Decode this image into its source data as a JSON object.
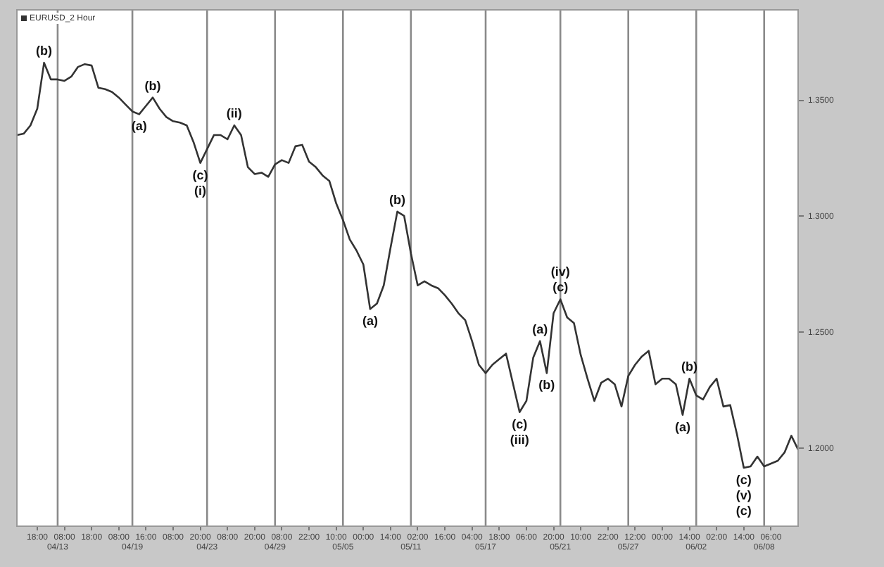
{
  "chart_data": {
    "type": "line",
    "legend": "top left",
    "marker": "none",
    "line_style": "solid",
    "grid": false,
    "categories": [
      null,
      null,
      null,
      "18:00",
      null,
      null,
      "04/13",
      "08:00",
      null,
      null,
      null,
      "18:00",
      null,
      null,
      null,
      "08:00",
      null,
      "04/19",
      null,
      "16:00",
      null,
      null,
      null,
      "08:00",
      null,
      null,
      null,
      "20:00",
      "04/23",
      null,
      null,
      "08:00",
      null,
      null,
      null,
      "20:00",
      null,
      null,
      "04/29",
      "08:00",
      null,
      null,
      null,
      "22:00",
      null,
      null,
      null,
      "10:00",
      "05/05",
      null,
      null,
      "00:00",
      null,
      null,
      null,
      "14:00",
      null,
      null,
      "05/11",
      "02:00",
      null,
      null,
      null,
      "16:00",
      null,
      null,
      null,
      "04:00",
      null,
      "05/17",
      null,
      "18:00",
      null,
      null,
      null,
      "06:00",
      null,
      null,
      null,
      "20:00",
      "05/21",
      null,
      null,
      "10:00",
      null,
      null,
      null,
      "22:00",
      null,
      null,
      "05/27",
      "12:00",
      null,
      null,
      null,
      "00:00",
      null,
      null,
      null,
      "14:00",
      "06/02",
      null,
      null,
      "02:00",
      null,
      null,
      null,
      "14:00",
      null,
      null,
      "06/08",
      "06:00",
      null,
      null,
      null,
      null
    ],
    "series": [
      {
        "name": "EURUSD_2 Hour",
        "color": "#333333",
        "values": [
          1.335,
          1.3356,
          1.3392,
          1.3464,
          1.3662,
          1.359,
          1.359,
          1.3584,
          1.3602,
          1.3644,
          1.3656,
          1.365,
          1.3554,
          1.3548,
          1.3536,
          1.3512,
          1.3482,
          1.3452,
          1.344,
          1.3476,
          1.3512,
          1.3464,
          1.3428,
          1.341,
          1.3404,
          1.3392,
          1.332,
          1.323,
          1.329,
          1.335,
          1.335,
          1.3332,
          1.3392,
          1.335,
          1.3212,
          1.3182,
          1.3188,
          1.317,
          1.3224,
          1.3242,
          1.323,
          1.3302,
          1.3308,
          1.3236,
          1.3212,
          1.3176,
          1.3152,
          1.3056,
          1.2984,
          1.29,
          1.2852,
          1.2792,
          1.26,
          1.2624,
          1.2702,
          1.2864,
          1.302,
          1.3002,
          1.284,
          1.2702,
          1.272,
          1.2702,
          1.269,
          1.266,
          1.2624,
          1.2582,
          1.2552,
          1.2462,
          1.236,
          1.2324,
          1.236,
          1.2384,
          1.2408,
          1.2282,
          1.2156,
          1.2204,
          1.239,
          1.2462,
          1.2324,
          1.2582,
          1.2642,
          1.2564,
          1.254,
          1.2402,
          1.23,
          1.2204,
          1.2282,
          1.23,
          1.2276,
          1.218,
          1.2312,
          1.236,
          1.2396,
          1.242,
          1.2276,
          1.23,
          1.23,
          1.2276,
          1.2144,
          1.23,
          1.2228,
          1.221,
          1.2264,
          1.23,
          1.218,
          1.2186,
          1.206,
          1.1916,
          1.1922,
          1.1964,
          1.1922,
          1.1934,
          1.1946,
          1.1982,
          1.2054,
          1.1994
        ],
        "value_labels": [
          null,
          null,
          null,
          null,
          "(b)",
          null,
          null,
          null,
          null,
          null,
          null,
          null,
          null,
          null,
          null,
          null,
          null,
          null,
          "(a)",
          null,
          "(b)",
          null,
          null,
          null,
          null,
          null,
          null,
          "(c)\n(i)",
          null,
          null,
          null,
          null,
          "(ii)",
          null,
          null,
          null,
          null,
          null,
          null,
          null,
          null,
          null,
          null,
          null,
          null,
          null,
          null,
          null,
          null,
          null,
          null,
          null,
          "(a)",
          null,
          null,
          null,
          "(b)",
          null,
          null,
          null,
          null,
          null,
          null,
          null,
          null,
          null,
          null,
          null,
          null,
          null,
          null,
          null,
          null,
          null,
          "(c)\n(iii)",
          null,
          null,
          "(a)",
          "(b)",
          null,
          "(iv)\n(c)",
          null,
          null,
          null,
          null,
          null,
          null,
          null,
          null,
          null,
          null,
          null,
          null,
          null,
          null,
          null,
          null,
          null,
          "(a)",
          "(b)",
          null,
          null,
          null,
          null,
          null,
          null,
          null,
          "(c)\n(v)\n(c)",
          null,
          null,
          null,
          null,
          null,
          null,
          null,
          null
        ]
      }
    ],
    "ylim": [
      1.1664,
      1.389
    ],
    "yticks": [
      {
        "value": 1.2,
        "label": "1.2000"
      },
      {
        "value": 1.25,
        "label": "1.2500"
      },
      {
        "value": 1.3,
        "label": "1.3000"
      },
      {
        "value": 1.35,
        "label": "1.3500"
      }
    ],
    "ref_lines": [
      {
        "axis": "x",
        "value": "04/13",
        "color": "#8a8a8a"
      },
      {
        "axis": "x",
        "value": "04/19",
        "color": "#8a8a8a"
      },
      {
        "axis": "x",
        "value": "04/23",
        "color": "#8a8a8a"
      },
      {
        "axis": "x",
        "value": "04/29",
        "color": "#8a8a8a"
      },
      {
        "axis": "x",
        "value": "05/05",
        "color": "#8a8a8a"
      },
      {
        "axis": "x",
        "value": "05/11",
        "color": "#8a8a8a"
      },
      {
        "axis": "x",
        "value": "05/17",
        "color": "#8a8a8a"
      },
      {
        "axis": "x",
        "value": "05/21",
        "color": "#8a8a8a"
      },
      {
        "axis": "x",
        "value": "05/27",
        "color": "#8a8a8a"
      },
      {
        "axis": "x",
        "value": "06/02",
        "color": "#8a8a8a"
      },
      {
        "axis": "x",
        "value": "06/08",
        "color": "#8a8a8a"
      }
    ]
  }
}
